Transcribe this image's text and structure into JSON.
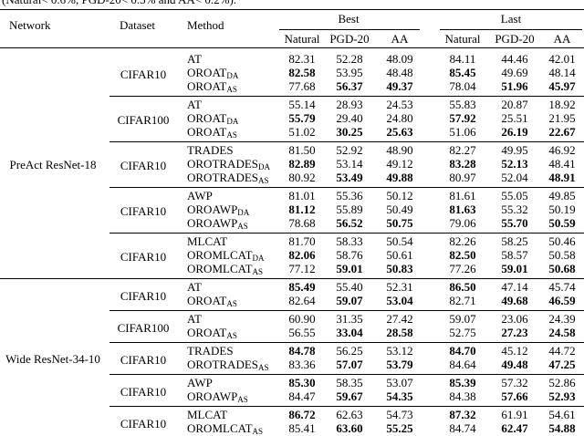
{
  "caption": "(Natural< 0.6%, PGD-20< 0.3% and AA< 0.2%).",
  "header": {
    "network": "Network",
    "dataset": "Dataset",
    "method": "Method",
    "best": "Best",
    "last": "Last",
    "metrics": [
      "Natural",
      "PGD-20",
      "AA"
    ]
  },
  "groups": [
    {
      "network": "PreAct ResNet-18",
      "blocks": [
        {
          "dataset": "CIFAR10",
          "rows": [
            {
              "method": "AT",
              "best": [
                "82.31",
                "52.28",
                "48.09"
              ],
              "last": [
                "84.11",
                "44.46",
                "42.01"
              ]
            },
            {
              "method": {
                "text": "OROAT",
                "sub": "DA"
              },
              "best": [
                {
                  "text": "82.58",
                  "bold": true
                },
                "53.95",
                "48.48"
              ],
              "last": [
                {
                  "text": "85.45",
                  "bold": true
                },
                "49.69",
                "48.14"
              ]
            },
            {
              "method": {
                "text": "OROAT",
                "sub": "AS"
              },
              "best": [
                "77.68",
                {
                  "text": "56.37",
                  "bold": true
                },
                {
                  "text": "49.37",
                  "bold": true
                }
              ],
              "last": [
                "78.04",
                {
                  "text": "51.96",
                  "bold": true
                },
                {
                  "text": "45.97",
                  "bold": true
                }
              ]
            }
          ]
        },
        {
          "dataset": "CIFAR100",
          "rows": [
            {
              "method": "AT",
              "best": [
                "55.14",
                "28.93",
                "24.53"
              ],
              "last": [
                "55.83",
                "20.87",
                "18.92"
              ]
            },
            {
              "method": {
                "text": "OROAT",
                "sub": "DA"
              },
              "best": [
                {
                  "text": "55.79",
                  "bold": true
                },
                "29.40",
                "24.80"
              ],
              "last": [
                {
                  "text": "57.92",
                  "bold": true
                },
                "25.51",
                "21.95"
              ]
            },
            {
              "method": {
                "text": "OROAT",
                "sub": "AS"
              },
              "best": [
                "51.02",
                {
                  "text": "30.25",
                  "bold": true
                },
                {
                  "text": "25.63",
                  "bold": true
                }
              ],
              "last": [
                "51.06",
                {
                  "text": "26.19",
                  "bold": true
                },
                {
                  "text": "22.67",
                  "bold": true
                }
              ]
            }
          ]
        },
        {
          "dataset": "CIFAR10",
          "rows": [
            {
              "method": "TRADES",
              "best": [
                "81.50",
                "52.92",
                "48.90"
              ],
              "last": [
                "82.27",
                "49.95",
                "46.92"
              ]
            },
            {
              "method": {
                "text": "OROTRADES",
                "sub": "DA"
              },
              "best": [
                {
                  "text": "82.89",
                  "bold": true
                },
                "53.14",
                "49.12"
              ],
              "last": [
                {
                  "text": "83.28",
                  "bold": true
                },
                {
                  "text": "52.13",
                  "bold": true
                },
                "48.41"
              ]
            },
            {
              "method": {
                "text": "OROTRADES",
                "sub": "AS"
              },
              "best": [
                "80.92",
                {
                  "text": "53.49",
                  "bold": true
                },
                {
                  "text": "49.88",
                  "bold": true
                }
              ],
              "last": [
                "80.97",
                "52.04",
                {
                  "text": "48.91",
                  "bold": true
                }
              ]
            }
          ]
        },
        {
          "dataset": "CIFAR10",
          "rows": [
            {
              "method": "AWP",
              "best": [
                "81.01",
                "55.36",
                "50.12"
              ],
              "last": [
                "81.61",
                "55.05",
                "49.85"
              ]
            },
            {
              "method": {
                "text": "OROAWP",
                "sub": "DA"
              },
              "best": [
                {
                  "text": "81.12",
                  "bold": true
                },
                "55.89",
                "50.49"
              ],
              "last": [
                {
                  "text": "81.63",
                  "bold": true
                },
                "55.32",
                "50.19"
              ]
            },
            {
              "method": {
                "text": "OROAWP",
                "sub": "AS"
              },
              "best": [
                "78.68",
                {
                  "text": "56.52",
                  "bold": true
                },
                {
                  "text": "50.75",
                  "bold": true
                }
              ],
              "last": [
                "79.06",
                {
                  "text": "55.70",
                  "bold": true
                },
                {
                  "text": "50.59",
                  "bold": true
                }
              ]
            }
          ]
        },
        {
          "dataset": "CIFAR10",
          "rows": [
            {
              "method": "MLCAT",
              "best": [
                "81.70",
                "58.33",
                "50.54"
              ],
              "last": [
                "82.26",
                "58.25",
                "50.46"
              ]
            },
            {
              "method": {
                "text": "OROMLCAT",
                "sub": "DA"
              },
              "best": [
                {
                  "text": "82.06",
                  "bold": true
                },
                "58.76",
                "50.61"
              ],
              "last": [
                {
                  "text": "82.50",
                  "bold": true
                },
                "58.57",
                "50.58"
              ]
            },
            {
              "method": {
                "text": "OROMLCAT",
                "sub": "AS"
              },
              "best": [
                "77.12",
                {
                  "text": "59.01",
                  "bold": true
                },
                {
                  "text": "50.83",
                  "bold": true
                }
              ],
              "last": [
                "77.26",
                {
                  "text": "59.01",
                  "bold": true
                },
                {
                  "text": "50.68",
                  "bold": true
                }
              ]
            }
          ]
        }
      ]
    },
    {
      "network": "Wide ResNet-34-10",
      "blocks": [
        {
          "dataset": "CIFAR10",
          "rows": [
            {
              "method": "AT",
              "best": [
                {
                  "text": "85.49",
                  "bold": true
                },
                "55.40",
                "52.31"
              ],
              "last": [
                {
                  "text": "86.50",
                  "bold": true
                },
                "47.14",
                "45.74"
              ]
            },
            {
              "method": {
                "text": "OROAT",
                "sub": "AS"
              },
              "best": [
                "82.64",
                {
                  "text": "59.07",
                  "bold": true
                },
                {
                  "text": "53.04",
                  "bold": true
                }
              ],
              "last": [
                "82.71",
                {
                  "text": "49.68",
                  "bold": true
                },
                {
                  "text": "46.59",
                  "bold": true
                }
              ]
            }
          ]
        },
        {
          "dataset": "CIFAR100",
          "rows": [
            {
              "method": "AT",
              "best": [
                "60.90",
                "31.35",
                "27.42"
              ],
              "last": [
                "59.07",
                "23.06",
                "24.39"
              ]
            },
            {
              "method": {
                "text": "OROAT",
                "sub": "AS"
              },
              "best": [
                "56.55",
                {
                  "text": "33.04",
                  "bold": true
                },
                {
                  "text": "28.58",
                  "bold": true
                }
              ],
              "last": [
                "52.75",
                {
                  "text": "27.23",
                  "bold": true
                },
                {
                  "text": "24.58",
                  "bold": true
                }
              ]
            }
          ]
        },
        {
          "dataset": "CIFAR10",
          "rows": [
            {
              "method": "TRADES",
              "best": [
                {
                  "text": "84.78",
                  "bold": true
                },
                "56.25",
                "53.12"
              ],
              "last": [
                {
                  "text": "84.70",
                  "bold": true
                },
                "45.12",
                "44.72"
              ]
            },
            {
              "method": {
                "text": "OROTRADES",
                "sub": "AS"
              },
              "best": [
                "83.36",
                {
                  "text": "57.07",
                  "bold": true
                },
                {
                  "text": "53.79",
                  "bold": true
                }
              ],
              "last": [
                "84.64",
                {
                  "text": "49.48",
                  "bold": true
                },
                {
                  "text": "47.25",
                  "bold": true
                }
              ]
            }
          ]
        },
        {
          "dataset": "CIFAR10",
          "rows": [
            {
              "method": "AWP",
              "best": [
                {
                  "text": "85.30",
                  "bold": true
                },
                "58.35",
                "53.07"
              ],
              "last": [
                {
                  "text": "85.39",
                  "bold": true
                },
                "57.32",
                "52.86"
              ]
            },
            {
              "method": {
                "text": "OROAWP",
                "sub": "AS"
              },
              "best": [
                "84.47",
                {
                  "text": "59.67",
                  "bold": true
                },
                {
                  "text": "54.35",
                  "bold": true
                }
              ],
              "last": [
                "84.38",
                {
                  "text": "57.66",
                  "bold": true
                },
                {
                  "text": "52.93",
                  "bold": true
                }
              ]
            }
          ]
        },
        {
          "dataset": "CIFAR10",
          "rows": [
            {
              "method": "MLCAT",
              "best": [
                {
                  "text": "86.72",
                  "bold": true
                },
                "62.63",
                "54.73"
              ],
              "last": [
                {
                  "text": "87.32",
                  "bold": true
                },
                "61.91",
                "54.61"
              ]
            },
            {
              "method": {
                "text": "OROMLCAT",
                "sub": "AS"
              },
              "best": [
                "85.41",
                {
                  "text": "63.60",
                  "bold": true
                },
                {
                  "text": "55.25",
                  "bold": true
                }
              ],
              "last": [
                "84.74",
                {
                  "text": "62.47",
                  "bold": true
                },
                {
                  "text": "54.88",
                  "bold": true
                }
              ]
            }
          ]
        }
      ]
    }
  ]
}
